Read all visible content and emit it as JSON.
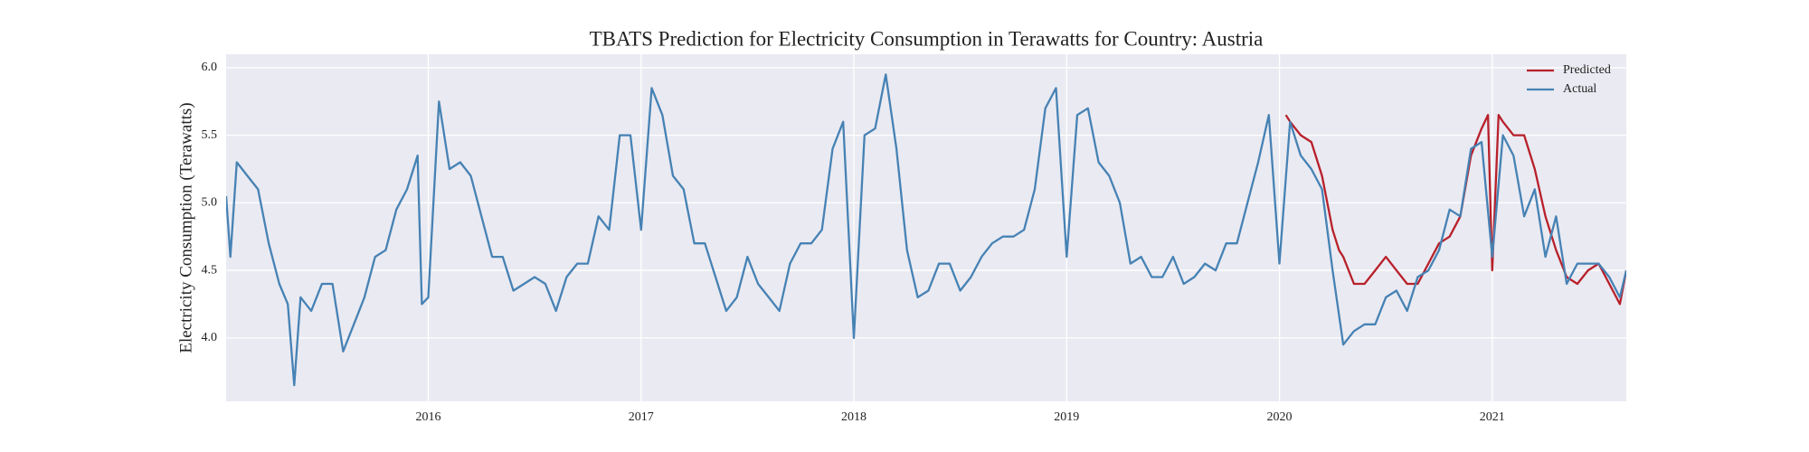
{
  "chart_data": {
    "type": "line",
    "title": "TBATS Prediction for Electricity Consumption in Terawatts for Country: Austria",
    "y_label": "Electricity Consumption (Terawatts)",
    "xlim": [
      2015.05,
      2021.63
    ],
    "xticks": [
      2016,
      2017,
      2018,
      2019,
      2020,
      2021
    ],
    "ylim": [
      3.53,
      6.1
    ],
    "yticks": [
      {
        "value": 4,
        "label": "4.0"
      },
      {
        "value": 4.5,
        "label": "4.5"
      },
      {
        "value": 5,
        "label": "5.0"
      },
      {
        "value": 5.5,
        "label": "5.5"
      },
      {
        "value": 6,
        "label": "6.0"
      }
    ],
    "grid": true,
    "legend": "upper right",
    "series": [
      {
        "name": "Predicted",
        "color": "#b8202a",
        "x": [
          2020.03,
          2020.05,
          2020.1,
          2020.15,
          2020.2,
          2020.25,
          2020.28,
          2020.3,
          2020.35,
          2020.4,
          2020.45,
          2020.5,
          2020.55,
          2020.6,
          2020.65,
          2020.7,
          2020.75,
          2020.8,
          2020.85,
          2020.9,
          2020.95,
          2020.98,
          2021.0,
          2021.03,
          2021.05,
          2021.1,
          2021.15,
          2021.2,
          2021.25,
          2021.3,
          2021.35,
          2021.4,
          2021.45,
          2021.5,
          2021.55,
          2021.6,
          2021.63
        ],
        "values": [
          5.65,
          5.6,
          5.5,
          5.45,
          5.2,
          4.8,
          4.65,
          4.6,
          4.4,
          4.4,
          4.5,
          4.6,
          4.5,
          4.4,
          4.4,
          4.55,
          4.7,
          4.75,
          4.9,
          5.35,
          5.55,
          5.65,
          4.5,
          5.65,
          5.6,
          5.5,
          5.5,
          5.25,
          4.9,
          4.65,
          4.45,
          4.4,
          4.5,
          4.55,
          4.4,
          4.25,
          4.5
        ]
      },
      {
        "name": "Actual",
        "color": "#4682b4",
        "x": [
          2015.05,
          2015.07,
          2015.1,
          2015.15,
          2015.2,
          2015.25,
          2015.3,
          2015.34,
          2015.37,
          2015.4,
          2015.45,
          2015.5,
          2015.55,
          2015.6,
          2015.65,
          2015.7,
          2015.75,
          2015.8,
          2015.85,
          2015.9,
          2015.95,
          2015.97,
          2016.0,
          2016.05,
          2016.1,
          2016.15,
          2016.2,
          2016.25,
          2016.3,
          2016.35,
          2016.4,
          2016.45,
          2016.5,
          2016.55,
          2016.6,
          2016.65,
          2016.7,
          2016.75,
          2016.8,
          2016.85,
          2016.9,
          2016.95,
          2017.0,
          2017.05,
          2017.1,
          2017.15,
          2017.2,
          2017.25,
          2017.3,
          2017.35,
          2017.4,
          2017.45,
          2017.5,
          2017.55,
          2017.6,
          2017.65,
          2017.7,
          2017.75,
          2017.8,
          2017.85,
          2017.9,
          2017.95,
          2018.0,
          2018.05,
          2018.1,
          2018.15,
          2018.2,
          2018.25,
          2018.3,
          2018.35,
          2018.4,
          2018.45,
          2018.5,
          2018.55,
          2018.6,
          2018.65,
          2018.7,
          2018.75,
          2018.8,
          2018.85,
          2018.9,
          2018.95,
          2019.0,
          2019.05,
          2019.1,
          2019.15,
          2019.2,
          2019.25,
          2019.3,
          2019.35,
          2019.4,
          2019.45,
          2019.5,
          2019.55,
          2019.6,
          2019.65,
          2019.7,
          2019.75,
          2019.8,
          2019.85,
          2019.9,
          2019.95,
          2020.0,
          2020.05,
          2020.1,
          2020.15,
          2020.2,
          2020.25,
          2020.3,
          2020.35,
          2020.4,
          2020.45,
          2020.5,
          2020.55,
          2020.6,
          2020.65,
          2020.7,
          2020.75,
          2020.8,
          2020.85,
          2020.9,
          2020.95,
          2021.0,
          2021.05,
          2021.1,
          2021.15,
          2021.2,
          2021.25,
          2021.3,
          2021.35,
          2021.4,
          2021.45,
          2021.5,
          2021.55,
          2021.6,
          2021.63
        ],
        "values": [
          5.05,
          4.6,
          5.3,
          5.2,
          5.1,
          4.7,
          4.4,
          4.25,
          3.65,
          4.3,
          4.2,
          4.4,
          4.4,
          3.9,
          4.1,
          4.3,
          4.6,
          4.65,
          4.95,
          5.1,
          5.35,
          4.25,
          4.3,
          5.75,
          5.25,
          5.3,
          5.2,
          4.9,
          4.6,
          4.6,
          4.35,
          4.4,
          4.45,
          4.4,
          4.2,
          4.45,
          4.55,
          4.55,
          4.9,
          4.8,
          5.5,
          5.5,
          4.8,
          5.85,
          5.65,
          5.2,
          5.1,
          4.7,
          4.7,
          4.45,
          4.2,
          4.3,
          4.6,
          4.4,
          4.3,
          4.2,
          4.55,
          4.7,
          4.7,
          4.8,
          5.4,
          5.6,
          4.0,
          5.5,
          5.55,
          5.95,
          5.4,
          4.65,
          4.3,
          4.35,
          4.55,
          4.55,
          4.35,
          4.45,
          4.6,
          4.7,
          4.75,
          4.75,
          4.8,
          5.1,
          5.7,
          5.85,
          4.6,
          5.65,
          5.7,
          5.3,
          5.2,
          5.0,
          4.55,
          4.6,
          4.45,
          4.45,
          4.6,
          4.4,
          4.45,
          4.55,
          4.5,
          4.7,
          4.7,
          5.0,
          5.3,
          5.65,
          4.55,
          5.6,
          5.35,
          5.25,
          5.1,
          4.5,
          3.95,
          4.05,
          4.1,
          4.1,
          4.3,
          4.35,
          4.2,
          4.45,
          4.5,
          4.65,
          4.95,
          4.9,
          5.4,
          5.45,
          4.6,
          5.5,
          5.35,
          4.9,
          5.1,
          4.6,
          4.9,
          4.4,
          4.55,
          4.55,
          4.55,
          4.45,
          4.3,
          4.5
        ]
      }
    ]
  }
}
